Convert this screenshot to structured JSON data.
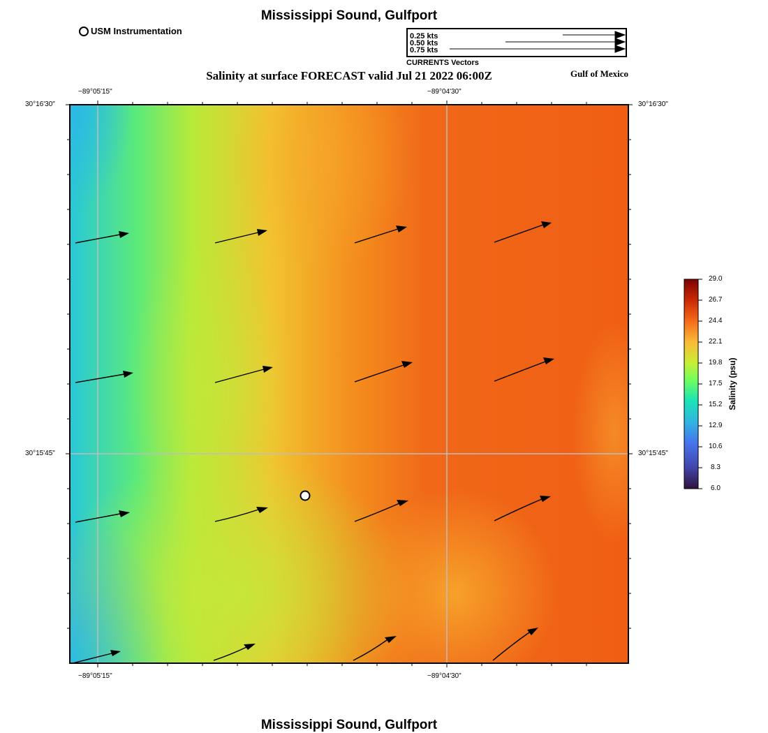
{
  "title_top": "Mississippi Sound, Gulfport",
  "title_bottom": "Mississippi Sound, Gulfport",
  "subtitle": "Salinity at surface FORECAST valid Jul 21 2022 06:00Z",
  "region_label": "Gulf of Mexico",
  "station_legend": "USM Instrumentation",
  "vector_legend": {
    "caption": "CURRENTS Vectors",
    "entries": [
      {
        "label": "0.25 kts",
        "knots": 0.25
      },
      {
        "label": "0.50 kts",
        "knots": 0.5
      },
      {
        "label": "0.75 kts",
        "knots": 0.75
      }
    ]
  },
  "axes": {
    "lon_ticks": [
      "−89°05'15\"",
      "−89°04'30\""
    ],
    "lat_ticks": [
      "30°16'30\"",
      "30°15'45\""
    ]
  },
  "colorbar": {
    "title": "Salinity (psu)",
    "min": 6.0,
    "max": 29.0,
    "ticks": [
      "29.0",
      "26.7",
      "24.4",
      "22.1",
      "19.8",
      "17.5",
      "15.2",
      "12.9",
      "10.6",
      "8.3",
      "6.0"
    ]
  },
  "colors": {
    "low": "#2eb8e0",
    "mid_low": "#2ae0b0",
    "mid": "#b4ea3a",
    "mid_high": "#f5b830",
    "high": "#f06a1a",
    "grid": "#bdbdbd"
  }
}
